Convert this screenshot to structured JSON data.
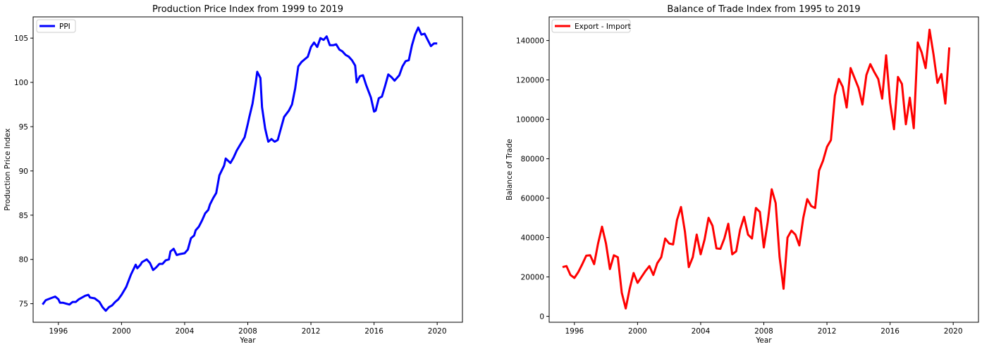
{
  "chart_data": [
    {
      "type": "line",
      "title": "Production Price Index from 1999 to 2019",
      "xlabel": "Year",
      "ylabel": "Production Price Index",
      "xlim": [
        1994.4,
        2021.6
      ],
      "ylim": [
        72.9,
        107.4
      ],
      "xticks": [
        1996,
        2000,
        2004,
        2008,
        2012,
        2016,
        2020
      ],
      "yticks": [
        75,
        80,
        85,
        90,
        95,
        100,
        105
      ],
      "x_tick_labels": [
        "1996",
        "2000",
        "2004",
        "2008",
        "2012",
        "2016",
        "2020"
      ],
      "y_tick_labels": [
        "75",
        "80",
        "85",
        "90",
        "95",
        "100",
        "105"
      ],
      "grid": false,
      "legend_position": "upper-left",
      "color": "#0000ff",
      "series": [
        {
          "name": "PPI",
          "x": [
            1995.0,
            1995.2,
            1995.5,
            1995.8,
            1996.0,
            1996.1,
            1996.3,
            1996.5,
            1996.7,
            1996.9,
            1997.1,
            1997.3,
            1997.5,
            1997.7,
            1997.9,
            1998.0,
            1998.3,
            1998.6,
            1998.8,
            1999.0,
            1999.2,
            1999.4,
            1999.6,
            1999.8,
            2000.0,
            2000.3,
            2000.6,
            2000.9,
            2001.0,
            2001.2,
            2001.3,
            2001.6,
            2001.8,
            2002.0,
            2002.2,
            2002.4,
            2002.6,
            2002.8,
            2003.0,
            2003.1,
            2003.3,
            2003.5,
            2003.7,
            2004.0,
            2004.2,
            2004.4,
            2004.6,
            2004.7,
            2004.9,
            2005.1,
            2005.3,
            2005.5,
            2005.6,
            2005.8,
            2006.0,
            2006.2,
            2006.5,
            2006.6,
            2006.9,
            2007.1,
            2007.3,
            2007.5,
            2007.8,
            2008.0,
            2008.1,
            2008.3,
            2008.5,
            2008.6,
            2008.8,
            2008.9,
            2009.1,
            2009.2,
            2009.3,
            2009.5,
            2009.7,
            2009.9,
            2010.1,
            2010.3,
            2010.6,
            2010.8,
            2011.0,
            2011.2,
            2011.4,
            2011.6,
            2011.8,
            2012.0,
            2012.2,
            2012.4,
            2012.6,
            2012.8,
            2013.0,
            2013.2,
            2013.4,
            2013.6,
            2013.8,
            2014.0,
            2014.2,
            2014.4,
            2014.6,
            2014.8,
            2014.9,
            2015.1,
            2015.3,
            2015.5,
            2015.8,
            2016.0,
            2016.1,
            2016.3,
            2016.5,
            2016.7,
            2016.9,
            2017.1,
            2017.3,
            2017.6,
            2017.8,
            2018.0,
            2018.2,
            2018.4,
            2018.6,
            2018.8,
            2019.0,
            2019.2,
            2019.4,
            2019.6,
            2019.8,
            2020.0
          ],
          "y": [
            74.9,
            75.4,
            75.6,
            75.8,
            75.5,
            75.1,
            75.1,
            75.0,
            74.9,
            75.2,
            75.2,
            75.5,
            75.7,
            75.9,
            76.0,
            75.7,
            75.6,
            75.2,
            74.6,
            74.2,
            74.6,
            74.8,
            75.2,
            75.5,
            76.0,
            76.9,
            78.3,
            79.4,
            79.0,
            79.4,
            79.7,
            80.0,
            79.6,
            78.8,
            79.1,
            79.5,
            79.5,
            79.9,
            80.0,
            80.9,
            81.2,
            80.5,
            80.6,
            80.7,
            81.1,
            82.4,
            82.7,
            83.3,
            83.7,
            84.4,
            85.2,
            85.6,
            86.2,
            86.9,
            87.5,
            89.5,
            90.6,
            91.4,
            90.9,
            91.5,
            92.3,
            92.9,
            93.8,
            95.3,
            96.1,
            97.6,
            99.9,
            101.2,
            100.5,
            97.2,
            94.8,
            94.0,
            93.3,
            93.6,
            93.3,
            93.5,
            94.8,
            96.1,
            96.8,
            97.5,
            99.3,
            101.8,
            102.3,
            102.6,
            102.9,
            104.0,
            104.5,
            104.0,
            105.0,
            104.8,
            105.2,
            104.2,
            104.2,
            104.3,
            103.7,
            103.5,
            103.1,
            102.9,
            102.5,
            101.9,
            100.0,
            100.7,
            100.8,
            99.7,
            98.3,
            96.7,
            96.8,
            98.2,
            98.4,
            99.6,
            100.9,
            100.6,
            100.2,
            100.8,
            101.8,
            102.4,
            102.5,
            104.2,
            105.4,
            106.2,
            105.4,
            105.5,
            104.8,
            104.1,
            104.4,
            104.4
          ]
        }
      ]
    },
    {
      "type": "line",
      "title": "Balance of Trade Index from 1995 to 2019",
      "xlabel": "Year",
      "ylabel": "Balance of Trade",
      "xlim": [
        1994.4,
        2021.6
      ],
      "ylim": [
        -3000,
        152000
      ],
      "xticks": [
        1996,
        2000,
        2004,
        2008,
        2012,
        2016,
        2020
      ],
      "yticks": [
        0,
        20000,
        40000,
        60000,
        80000,
        100000,
        120000,
        140000
      ],
      "x_tick_labels": [
        "1996",
        "2000",
        "2004",
        "2008",
        "2012",
        "2016",
        "2020"
      ],
      "y_tick_labels": [
        "0",
        "20000",
        "40000",
        "60000",
        "80000",
        "100000",
        "120000",
        "140000"
      ],
      "grid": false,
      "legend_position": "upper-left",
      "color": "#ff0000",
      "series": [
        {
          "name": "Export - Import",
          "x": [
            1995.25,
            1995.5,
            1995.75,
            1996.0,
            1996.25,
            1996.5,
            1996.75,
            1997.0,
            1997.25,
            1997.5,
            1997.75,
            1998.0,
            1998.25,
            1998.5,
            1998.75,
            1999.0,
            1999.25,
            1999.5,
            1999.75,
            2000.0,
            2000.25,
            2000.5,
            2000.75,
            2001.0,
            2001.25,
            2001.5,
            2001.75,
            2002.0,
            2002.25,
            2002.5,
            2002.75,
            2003.0,
            2003.25,
            2003.5,
            2003.75,
            2004.0,
            2004.25,
            2004.5,
            2004.75,
            2005.0,
            2005.25,
            2005.5,
            2005.75,
            2006.0,
            2006.25,
            2006.5,
            2006.75,
            2007.0,
            2007.25,
            2007.5,
            2007.75,
            2008.0,
            2008.25,
            2008.5,
            2008.75,
            2009.0,
            2009.25,
            2009.5,
            2009.75,
            2010.0,
            2010.25,
            2010.5,
            2010.75,
            2011.0,
            2011.25,
            2011.5,
            2011.75,
            2012.0,
            2012.25,
            2012.5,
            2012.75,
            2013.0,
            2013.25,
            2013.5,
            2013.75,
            2014.0,
            2014.25,
            2014.5,
            2014.75,
            2015.0,
            2015.25,
            2015.5,
            2015.75,
            2016.0,
            2016.25,
            2016.5,
            2016.75,
            2017.0,
            2017.25,
            2017.5,
            2017.75,
            2018.0,
            2018.25,
            2018.5,
            2018.75,
            2019.0,
            2019.25,
            2019.5,
            2019.75
          ],
          "y": [
            25000,
            25500,
            21000,
            19500,
            22500,
            26500,
            30800,
            31000,
            26500,
            37000,
            45500,
            37000,
            24000,
            31000,
            30000,
            12000,
            4000,
            14000,
            22000,
            17000,
            20000,
            23000,
            25500,
            21000,
            27000,
            30000,
            39500,
            37000,
            36500,
            49000,
            55500,
            43000,
            25000,
            30000,
            41500,
            31500,
            39000,
            50000,
            46000,
            34500,
            34300,
            39500,
            47000,
            31500,
            33000,
            44000,
            50500,
            41500,
            39500,
            55000,
            53000,
            35000,
            48000,
            64500,
            57500,
            30000,
            14000,
            40000,
            43500,
            41500,
            36000,
            50000,
            59500,
            56000,
            55000,
            74000,
            79000,
            86000,
            89500,
            112000,
            120500,
            116500,
            106000,
            126000,
            121000,
            116000,
            107500,
            122500,
            128000,
            124000,
            120500,
            110500,
            132500,
            108500,
            95000,
            121500,
            118000,
            97500,
            111000,
            95500,
            139000,
            134000,
            126000,
            145500,
            133000,
            118500,
            123000,
            108000,
            136500
          ]
        }
      ]
    }
  ]
}
